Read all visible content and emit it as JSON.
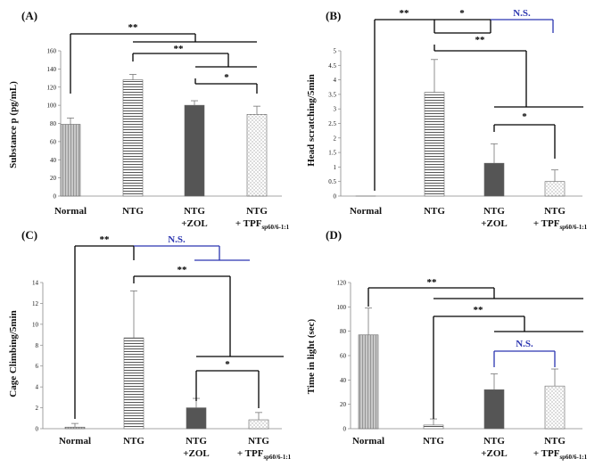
{
  "chart_data": [
    {
      "type": "bar",
      "panel": "(A)",
      "ylabel": "Substance p (pg/mL)",
      "ylim": [
        0,
        160
      ],
      "yticks": [
        0,
        20,
        40,
        60,
        80,
        100,
        120,
        140,
        160
      ],
      "categories": [
        {
          "line1": "Normal",
          "line2": "",
          "sub": ""
        },
        {
          "line1": "NTG",
          "line2": "",
          "sub": ""
        },
        {
          "line1": "NTG",
          "line2": "+ZOL",
          "sub": ""
        },
        {
          "line1": "NTG",
          "line2": "+ TPF",
          "sub": "sp60/6-1:1"
        }
      ],
      "values": [
        79,
        128,
        100,
        90
      ],
      "errors": [
        7,
        6,
        5,
        9
      ],
      "annotations": [
        {
          "text": "**",
          "color": "black"
        },
        {
          "text": "**",
          "color": "black"
        },
        {
          "text": "*",
          "color": "black"
        }
      ]
    },
    {
      "type": "bar",
      "panel": "(B)",
      "ylabel": "Head scratching/5min",
      "ylim": [
        0,
        5
      ],
      "yticks": [
        "0",
        "0.5",
        "1",
        "1.5",
        "2",
        "2.5",
        "3",
        "3.5",
        "4",
        "4.5",
        "5"
      ],
      "categories": [
        {
          "line1": "Normal",
          "line2": "",
          "sub": ""
        },
        {
          "line1": "NTG",
          "line2": "",
          "sub": ""
        },
        {
          "line1": "NTG",
          "line2": "+ZOL",
          "sub": ""
        },
        {
          "line1": "NTG",
          "line2": "+ TPF",
          "sub": "sp60/6-1:1"
        }
      ],
      "values": [
        0,
        3.57,
        1.13,
        0.5
      ],
      "errors": [
        0,
        1.13,
        0.67,
        0.4
      ],
      "annotations": [
        {
          "text": "**",
          "color": "black"
        },
        {
          "text": "*",
          "color": "black"
        },
        {
          "text": "N.S.",
          "color": "blue"
        },
        {
          "text": "**",
          "color": "black"
        },
        {
          "text": "*",
          "color": "black"
        }
      ]
    },
    {
      "type": "bar",
      "panel": "(C)",
      "ylabel": "Cage Climbing/5min",
      "ylim": [
        0,
        14
      ],
      "yticks": [
        0,
        2,
        4,
        6,
        8,
        10,
        12,
        14
      ],
      "categories": [
        {
          "line1": "Normal",
          "line2": "",
          "sub": ""
        },
        {
          "line1": "NTG",
          "line2": "",
          "sub": ""
        },
        {
          "line1": "NTG",
          "line2": "+ZOL",
          "sub": ""
        },
        {
          "line1": "NTG",
          "line2": "+ TPF",
          "sub": "sp60/6-1:1"
        }
      ],
      "values": [
        0.15,
        8.7,
        2.0,
        0.85
      ],
      "errors": [
        0.35,
        4.5,
        0.9,
        0.7
      ],
      "annotations": [
        {
          "text": "**",
          "color": "black"
        },
        {
          "text": "N.S.",
          "color": "blue"
        },
        {
          "text": "**",
          "color": "black"
        },
        {
          "text": "*",
          "color": "black"
        }
      ]
    },
    {
      "type": "bar",
      "panel": "(D)",
      "ylabel": "Time in light (sec)",
      "ylim": [
        0,
        120
      ],
      "yticks": [
        0,
        20,
        40,
        60,
        80,
        100,
        120
      ],
      "categories": [
        {
          "line1": "Normal",
          "line2": "",
          "sub": ""
        },
        {
          "line1": "NTG",
          "line2": "",
          "sub": ""
        },
        {
          "line1": "NTG",
          "line2": "+ZOL",
          "sub": ""
        },
        {
          "line1": "NTG",
          "line2": "+ TPF",
          "sub": "sp60/6-1:1"
        }
      ],
      "values": [
        77,
        3,
        32,
        35
      ],
      "errors": [
        22,
        5,
        13,
        14
      ],
      "annotations": [
        {
          "text": "**",
          "color": "black"
        },
        {
          "text": "**",
          "color": "black"
        },
        {
          "text": "N.S.",
          "color": "blue"
        }
      ]
    }
  ]
}
